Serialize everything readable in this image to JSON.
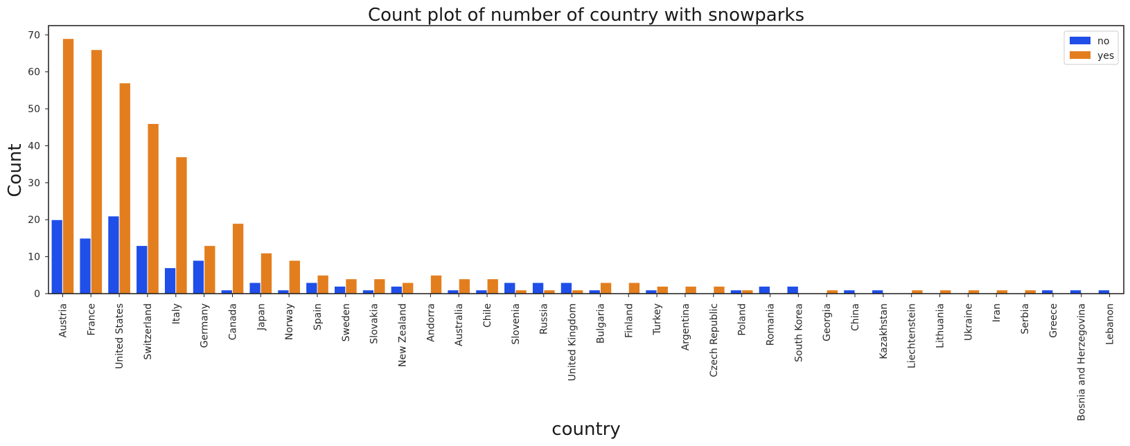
{
  "chart_data": {
    "type": "bar",
    "title": "Count plot of number of country with snowparks",
    "xlabel": "country",
    "ylabel": "Count",
    "ylim": [
      0,
      72.5
    ],
    "yticks": [
      0,
      10,
      20,
      30,
      40,
      50,
      60,
      70
    ],
    "grid": false,
    "legend_position": "top-right",
    "categories": [
      "Austria",
      "France",
      "United States",
      "Switzerland",
      "Italy",
      "Germany",
      "Canada",
      "Japan",
      "Norway",
      "Spain",
      "Sweden",
      "Slovakia",
      "New Zealand",
      "Andorra",
      "Australia",
      "Chile",
      "Slovenia",
      "Russia",
      "United Kingdom",
      "Bulgaria",
      "Finland",
      "Turkey",
      "Argentina",
      "Czech Republic",
      "Poland",
      "Romania",
      "South Korea",
      "Georgia",
      "China",
      "Kazakhstan",
      "Liechtenstein",
      "Lithuania",
      "Ukraine",
      "Iran",
      "Serbia",
      "Greece",
      "Bosnia and Herzegovina",
      "Lebanon"
    ],
    "series": [
      {
        "name": "no",
        "color": "#1f4ee8",
        "values": [
          20,
          15,
          21,
          13,
          7,
          9,
          1,
          3,
          1,
          3,
          2,
          1,
          2,
          0,
          1,
          1,
          3,
          3,
          3,
          1,
          0,
          1,
          0,
          0,
          1,
          2,
          2,
          0,
          1,
          1,
          0,
          0,
          0,
          0,
          0,
          1,
          1,
          1
        ]
      },
      {
        "name": "yes",
        "color": "#e37e1f",
        "values": [
          69,
          66,
          57,
          46,
          37,
          13,
          19,
          11,
          9,
          5,
          4,
          4,
          3,
          5,
          4,
          4,
          1,
          1,
          1,
          3,
          3,
          2,
          2,
          2,
          1,
          0,
          0,
          1,
          0,
          0,
          1,
          1,
          1,
          1,
          1,
          0,
          0,
          0
        ]
      }
    ]
  }
}
